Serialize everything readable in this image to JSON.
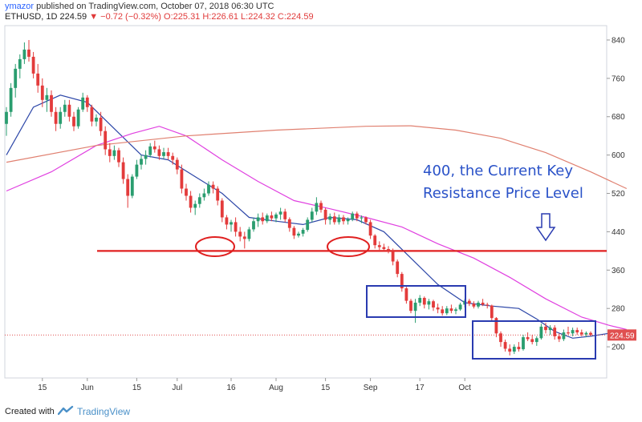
{
  "header": {
    "author": "ymazor",
    "published": "published on TradingView.com, October 07, 2018 06:30 UTC",
    "symbol": "ETHUSD, 1D",
    "last": "224.59",
    "change": "−0.72 (−0.32%)",
    "ohlc": "O:225.31 H:226.61 L:224.32 C:224.59"
  },
  "footer": {
    "created_with": "Created with",
    "brand": "TradingView"
  },
  "colors": {
    "up": "#2a9d6f",
    "down": "#e33b3b",
    "ma_fast": "#2d47a8",
    "ma_mid": "#e040e0",
    "ma_slow": "#e08070",
    "resistance": "#e02020",
    "annotation": "#2a52c8",
    "last_price_line": "#e05050"
  },
  "chart_data": {
    "type": "candlestick",
    "symbol": "ETHUSD",
    "interval": "1D",
    "x_ticks": [
      "15",
      "Jun",
      "15",
      "Jul",
      "16",
      "Aug",
      "15",
      "Sep",
      "17",
      "Oct"
    ],
    "y_ticks": [
      840,
      760,
      680,
      600,
      520,
      440,
      360,
      280,
      200
    ],
    "ylim": [
      135,
      870
    ],
    "grid": false,
    "candles": [
      {
        "o": 665,
        "h": 700,
        "l": 640,
        "c": 690
      },
      {
        "o": 690,
        "h": 750,
        "l": 680,
        "c": 740
      },
      {
        "o": 740,
        "h": 790,
        "l": 720,
        "c": 780
      },
      {
        "o": 780,
        "h": 810,
        "l": 760,
        "c": 800
      },
      {
        "o": 800,
        "h": 835,
        "l": 790,
        "c": 820
      },
      {
        "o": 820,
        "h": 840,
        "l": 795,
        "c": 805
      },
      {
        "o": 805,
        "h": 815,
        "l": 760,
        "c": 770
      },
      {
        "o": 770,
        "h": 790,
        "l": 730,
        "c": 745
      },
      {
        "o": 745,
        "h": 760,
        "l": 700,
        "c": 715
      },
      {
        "o": 715,
        "h": 740,
        "l": 690,
        "c": 725
      },
      {
        "o": 725,
        "h": 735,
        "l": 680,
        "c": 690
      },
      {
        "o": 690,
        "h": 700,
        "l": 650,
        "c": 665
      },
      {
        "o": 665,
        "h": 700,
        "l": 655,
        "c": 690
      },
      {
        "o": 690,
        "h": 715,
        "l": 680,
        "c": 705
      },
      {
        "o": 705,
        "h": 715,
        "l": 670,
        "c": 680
      },
      {
        "o": 680,
        "h": 690,
        "l": 650,
        "c": 660
      },
      {
        "o": 660,
        "h": 700,
        "l": 655,
        "c": 695
      },
      {
        "o": 695,
        "h": 730,
        "l": 690,
        "c": 720
      },
      {
        "o": 720,
        "h": 725,
        "l": 690,
        "c": 700
      },
      {
        "o": 700,
        "h": 705,
        "l": 660,
        "c": 670
      },
      {
        "o": 670,
        "h": 685,
        "l": 660,
        "c": 678
      },
      {
        "o": 678,
        "h": 690,
        "l": 640,
        "c": 650
      },
      {
        "o": 650,
        "h": 660,
        "l": 600,
        "c": 612
      },
      {
        "o": 612,
        "h": 625,
        "l": 585,
        "c": 598
      },
      {
        "o": 598,
        "h": 620,
        "l": 590,
        "c": 610
      },
      {
        "o": 610,
        "h": 615,
        "l": 575,
        "c": 585
      },
      {
        "o": 585,
        "h": 595,
        "l": 540,
        "c": 550
      },
      {
        "o": 550,
        "h": 560,
        "l": 490,
        "c": 515
      },
      {
        "o": 515,
        "h": 560,
        "l": 510,
        "c": 555
      },
      {
        "o": 555,
        "h": 590,
        "l": 550,
        "c": 580
      },
      {
        "o": 580,
        "h": 600,
        "l": 570,
        "c": 592
      },
      {
        "o": 592,
        "h": 610,
        "l": 580,
        "c": 600
      },
      {
        "o": 600,
        "h": 625,
        "l": 595,
        "c": 618
      },
      {
        "o": 618,
        "h": 630,
        "l": 605,
        "c": 612
      },
      {
        "o": 612,
        "h": 620,
        "l": 590,
        "c": 598
      },
      {
        "o": 598,
        "h": 615,
        "l": 592,
        "c": 606
      },
      {
        "o": 606,
        "h": 615,
        "l": 590,
        "c": 598
      },
      {
        "o": 598,
        "h": 605,
        "l": 580,
        "c": 590
      },
      {
        "o": 590,
        "h": 595,
        "l": 560,
        "c": 570
      },
      {
        "o": 570,
        "h": 580,
        "l": 520,
        "c": 530
      },
      {
        "o": 530,
        "h": 540,
        "l": 505,
        "c": 515
      },
      {
        "o": 515,
        "h": 525,
        "l": 480,
        "c": 490
      },
      {
        "o": 490,
        "h": 505,
        "l": 475,
        "c": 498
      },
      {
        "o": 498,
        "h": 520,
        "l": 490,
        "c": 512
      },
      {
        "o": 512,
        "h": 530,
        "l": 505,
        "c": 520
      },
      {
        "o": 520,
        "h": 545,
        "l": 515,
        "c": 538
      },
      {
        "o": 538,
        "h": 545,
        "l": 520,
        "c": 530
      },
      {
        "o": 530,
        "h": 535,
        "l": 495,
        "c": 505
      },
      {
        "o": 505,
        "h": 510,
        "l": 460,
        "c": 470
      },
      {
        "o": 470,
        "h": 475,
        "l": 445,
        "c": 455
      },
      {
        "o": 455,
        "h": 465,
        "l": 440,
        "c": 460
      },
      {
        "o": 460,
        "h": 470,
        "l": 430,
        "c": 440
      },
      {
        "o": 440,
        "h": 450,
        "l": 420,
        "c": 430
      },
      {
        "o": 430,
        "h": 440,
        "l": 405,
        "c": 425
      },
      {
        "o": 425,
        "h": 450,
        "l": 420,
        "c": 445
      },
      {
        "o": 445,
        "h": 470,
        "l": 440,
        "c": 462
      },
      {
        "o": 462,
        "h": 478,
        "l": 450,
        "c": 470
      },
      {
        "o": 470,
        "h": 480,
        "l": 455,
        "c": 462
      },
      {
        "o": 462,
        "h": 478,
        "l": 458,
        "c": 474
      },
      {
        "o": 474,
        "h": 482,
        "l": 462,
        "c": 468
      },
      {
        "o": 468,
        "h": 480,
        "l": 460,
        "c": 476
      },
      {
        "o": 476,
        "h": 490,
        "l": 465,
        "c": 482
      },
      {
        "o": 482,
        "h": 488,
        "l": 460,
        "c": 466
      },
      {
        "o": 466,
        "h": 470,
        "l": 440,
        "c": 448
      },
      {
        "o": 448,
        "h": 452,
        "l": 425,
        "c": 432
      },
      {
        "o": 432,
        "h": 440,
        "l": 428,
        "c": 436
      },
      {
        "o": 436,
        "h": 448,
        "l": 430,
        "c": 444
      },
      {
        "o": 444,
        "h": 470,
        "l": 440,
        "c": 465
      },
      {
        "o": 465,
        "h": 490,
        "l": 460,
        "c": 482
      },
      {
        "o": 482,
        "h": 512,
        "l": 475,
        "c": 500
      },
      {
        "o": 500,
        "h": 505,
        "l": 480,
        "c": 486
      },
      {
        "o": 486,
        "h": 490,
        "l": 455,
        "c": 465
      },
      {
        "o": 465,
        "h": 478,
        "l": 455,
        "c": 472
      },
      {
        "o": 472,
        "h": 480,
        "l": 455,
        "c": 460
      },
      {
        "o": 460,
        "h": 476,
        "l": 455,
        "c": 470
      },
      {
        "o": 470,
        "h": 475,
        "l": 455,
        "c": 462
      },
      {
        "o": 462,
        "h": 470,
        "l": 455,
        "c": 466
      },
      {
        "o": 466,
        "h": 482,
        "l": 462,
        "c": 478
      },
      {
        "o": 478,
        "h": 482,
        "l": 462,
        "c": 468
      },
      {
        "o": 468,
        "h": 474,
        "l": 458,
        "c": 470
      },
      {
        "o": 470,
        "h": 472,
        "l": 455,
        "c": 460
      },
      {
        "o": 460,
        "h": 465,
        "l": 425,
        "c": 432
      },
      {
        "o": 432,
        "h": 435,
        "l": 405,
        "c": 412
      },
      {
        "o": 412,
        "h": 420,
        "l": 402,
        "c": 408
      },
      {
        "o": 408,
        "h": 415,
        "l": 400,
        "c": 404
      },
      {
        "o": 404,
        "h": 410,
        "l": 395,
        "c": 400
      },
      {
        "o": 400,
        "h": 405,
        "l": 370,
        "c": 378
      },
      {
        "o": 378,
        "h": 382,
        "l": 345,
        "c": 352
      },
      {
        "o": 352,
        "h": 356,
        "l": 315,
        "c": 322
      },
      {
        "o": 322,
        "h": 325,
        "l": 290,
        "c": 296
      },
      {
        "o": 296,
        "h": 300,
        "l": 270,
        "c": 275
      },
      {
        "o": 275,
        "h": 300,
        "l": 250,
        "c": 292
      },
      {
        "o": 292,
        "h": 308,
        "l": 285,
        "c": 302
      },
      {
        "o": 302,
        "h": 305,
        "l": 280,
        "c": 288
      },
      {
        "o": 288,
        "h": 300,
        "l": 278,
        "c": 295
      },
      {
        "o": 295,
        "h": 298,
        "l": 275,
        "c": 282
      },
      {
        "o": 282,
        "h": 290,
        "l": 270,
        "c": 278
      },
      {
        "o": 278,
        "h": 285,
        "l": 265,
        "c": 270
      },
      {
        "o": 270,
        "h": 285,
        "l": 266,
        "c": 280
      },
      {
        "o": 280,
        "h": 288,
        "l": 270,
        "c": 275
      },
      {
        "o": 275,
        "h": 282,
        "l": 268,
        "c": 278
      },
      {
        "o": 278,
        "h": 292,
        "l": 275,
        "c": 288
      },
      {
        "o": 288,
        "h": 300,
        "l": 282,
        "c": 296
      },
      {
        "o": 296,
        "h": 300,
        "l": 285,
        "c": 290
      },
      {
        "o": 290,
        "h": 295,
        "l": 280,
        "c": 284
      },
      {
        "o": 284,
        "h": 296,
        "l": 280,
        "c": 292
      },
      {
        "o": 292,
        "h": 300,
        "l": 285,
        "c": 288
      },
      {
        "o": 288,
        "h": 292,
        "l": 280,
        "c": 286
      },
      {
        "o": 286,
        "h": 288,
        "l": 255,
        "c": 260
      },
      {
        "o": 260,
        "h": 262,
        "l": 220,
        "c": 228
      },
      {
        "o": 228,
        "h": 232,
        "l": 200,
        "c": 210
      },
      {
        "o": 210,
        "h": 215,
        "l": 190,
        "c": 196
      },
      {
        "o": 196,
        "h": 205,
        "l": 182,
        "c": 190
      },
      {
        "o": 190,
        "h": 205,
        "l": 185,
        "c": 200
      },
      {
        "o": 200,
        "h": 210,
        "l": 190,
        "c": 195
      },
      {
        "o": 195,
        "h": 225,
        "l": 192,
        "c": 220
      },
      {
        "o": 220,
        "h": 230,
        "l": 212,
        "c": 216
      },
      {
        "o": 216,
        "h": 225,
        "l": 205,
        "c": 210
      },
      {
        "o": 210,
        "h": 222,
        "l": 202,
        "c": 218
      },
      {
        "o": 218,
        "h": 248,
        "l": 215,
        "c": 242
      },
      {
        "o": 242,
        "h": 250,
        "l": 228,
        "c": 235
      },
      {
        "o": 235,
        "h": 245,
        "l": 225,
        "c": 240
      },
      {
        "o": 240,
        "h": 245,
        "l": 215,
        "c": 222
      },
      {
        "o": 222,
        "h": 228,
        "l": 210,
        "c": 216
      },
      {
        "o": 216,
        "h": 236,
        "l": 212,
        "c": 230
      },
      {
        "o": 230,
        "h": 242,
        "l": 225,
        "c": 228
      },
      {
        "o": 228,
        "h": 240,
        "l": 222,
        "c": 235
      },
      {
        "o": 235,
        "h": 240,
        "l": 225,
        "c": 230
      },
      {
        "o": 230,
        "h": 236,
        "l": 222,
        "c": 226
      },
      {
        "o": 226,
        "h": 232,
        "l": 220,
        "c": 229
      },
      {
        "o": 229,
        "h": 232,
        "l": 222,
        "c": 225
      }
    ],
    "series": [
      {
        "type": "line",
        "color": "#2d47a8",
        "values": [
          [
            0,
            600
          ],
          [
            6,
            700
          ],
          [
            12,
            725
          ],
          [
            18,
            710
          ],
          [
            24,
            655
          ],
          [
            30,
            600
          ],
          [
            36,
            590
          ],
          [
            42,
            555
          ],
          [
            48,
            520
          ],
          [
            54,
            470
          ],
          [
            60,
            462
          ],
          [
            66,
            455
          ],
          [
            72,
            470
          ],
          [
            78,
            465
          ],
          [
            84,
            440
          ],
          [
            90,
            385
          ],
          [
            96,
            330
          ],
          [
            102,
            292
          ],
          [
            108,
            285
          ],
          [
            114,
            280
          ],
          [
            118,
            258
          ],
          [
            122,
            232
          ],
          [
            126,
            218
          ],
          [
            130,
            222
          ],
          [
            134,
            228
          ],
          [
            138,
            229
          ]
        ]
      },
      {
        "type": "line",
        "color": "#e040e0",
        "values": [
          [
            0,
            525
          ],
          [
            10,
            565
          ],
          [
            20,
            620
          ],
          [
            28,
            645
          ],
          [
            34,
            660
          ],
          [
            40,
            640
          ],
          [
            48,
            590
          ],
          [
            56,
            545
          ],
          [
            64,
            505
          ],
          [
            72,
            488
          ],
          [
            80,
            470
          ],
          [
            88,
            450
          ],
          [
            96,
            415
          ],
          [
            104,
            385
          ],
          [
            112,
            345
          ],
          [
            120,
            300
          ],
          [
            128,
            262
          ],
          [
            134,
            245
          ],
          [
            138,
            236
          ]
        ]
      },
      {
        "type": "line",
        "color": "#e08070",
        "values": [
          [
            0,
            585
          ],
          [
            20,
            620
          ],
          [
            40,
            640
          ],
          [
            60,
            652
          ],
          [
            80,
            660
          ],
          [
            90,
            661
          ],
          [
            100,
            652
          ],
          [
            110,
            635
          ],
          [
            120,
            605
          ],
          [
            130,
            565
          ],
          [
            138,
            530
          ]
        ]
      }
    ],
    "resistance_level": 400,
    "last_price": 224.59,
    "annotations": [
      "400, the Current Key",
      "Resistance Price Level"
    ]
  }
}
